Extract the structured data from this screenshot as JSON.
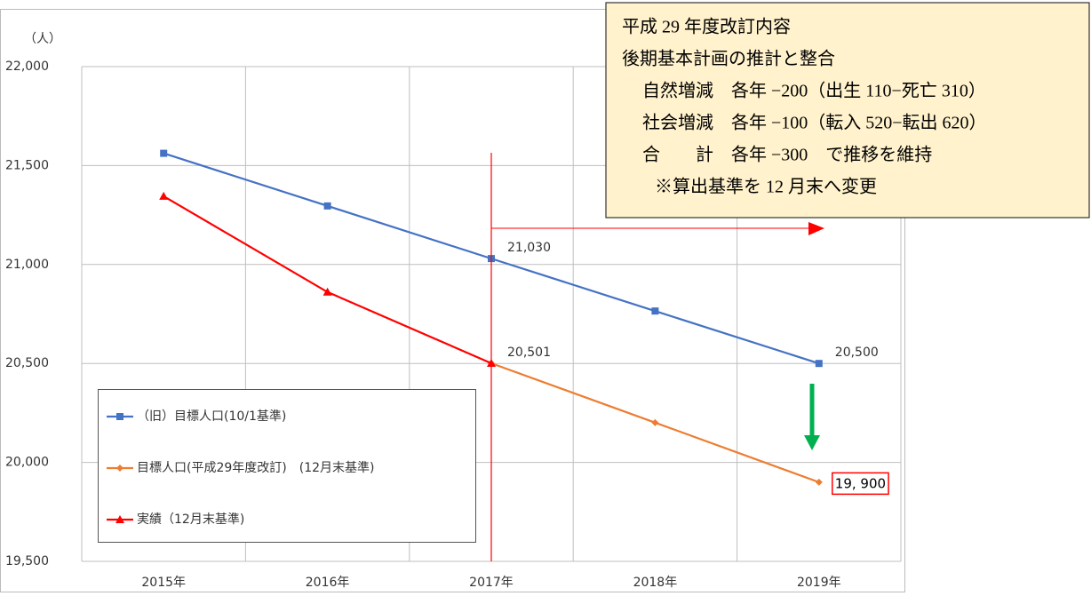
{
  "chart_data": {
    "type": "line",
    "y_unit_label": "（人）",
    "categories": [
      "2015年",
      "2016年",
      "2017年",
      "2018年",
      "2019年"
    ],
    "series": [
      {
        "name": "（旧）目標人口(10/1基準)",
        "color": "#4472c4",
        "marker": "square",
        "values": [
          21562,
          21296,
          21030,
          20765,
          20500
        ],
        "value_labels": [
          null,
          null,
          "21,030",
          null,
          "20,500"
        ]
      },
      {
        "name": "目標人口(平成29年度改訂)　(12月末基準)",
        "color": "#ed7d31",
        "marker": "diamond",
        "values": [
          null,
          null,
          20501,
          20201,
          19900
        ],
        "value_labels": [
          null,
          null,
          "20,501",
          null,
          "19, 900"
        ]
      },
      {
        "name": "実績（12月末基準)",
        "color": "#ff0000",
        "marker": "triangle",
        "values": [
          21345,
          20861,
          20501,
          null,
          null
        ]
      }
    ],
    "ylim": [
      19500,
      22000
    ],
    "yticks": [
      {
        "value": 19500,
        "label": "19,500"
      },
      {
        "value": 20000,
        "label": "20,000"
      },
      {
        "value": 20500,
        "label": "20,500"
      },
      {
        "value": 21000,
        "label": "21,000"
      },
      {
        "value": 21500,
        "label": "21,500"
      },
      {
        "value": 22000,
        "label": "22,000"
      }
    ],
    "grid": true,
    "annotation": [
      "平成 29 年度改訂内容",
      "後期基本計画の推計と整合",
      "自然増減　各年 −200（出生 110−死亡 310）",
      "社会増減　各年 −100（転入 520−転出 620）",
      "合　　計　各年 −300　で推移を維持",
      "※算出基準を 12 月末へ変更"
    ]
  }
}
